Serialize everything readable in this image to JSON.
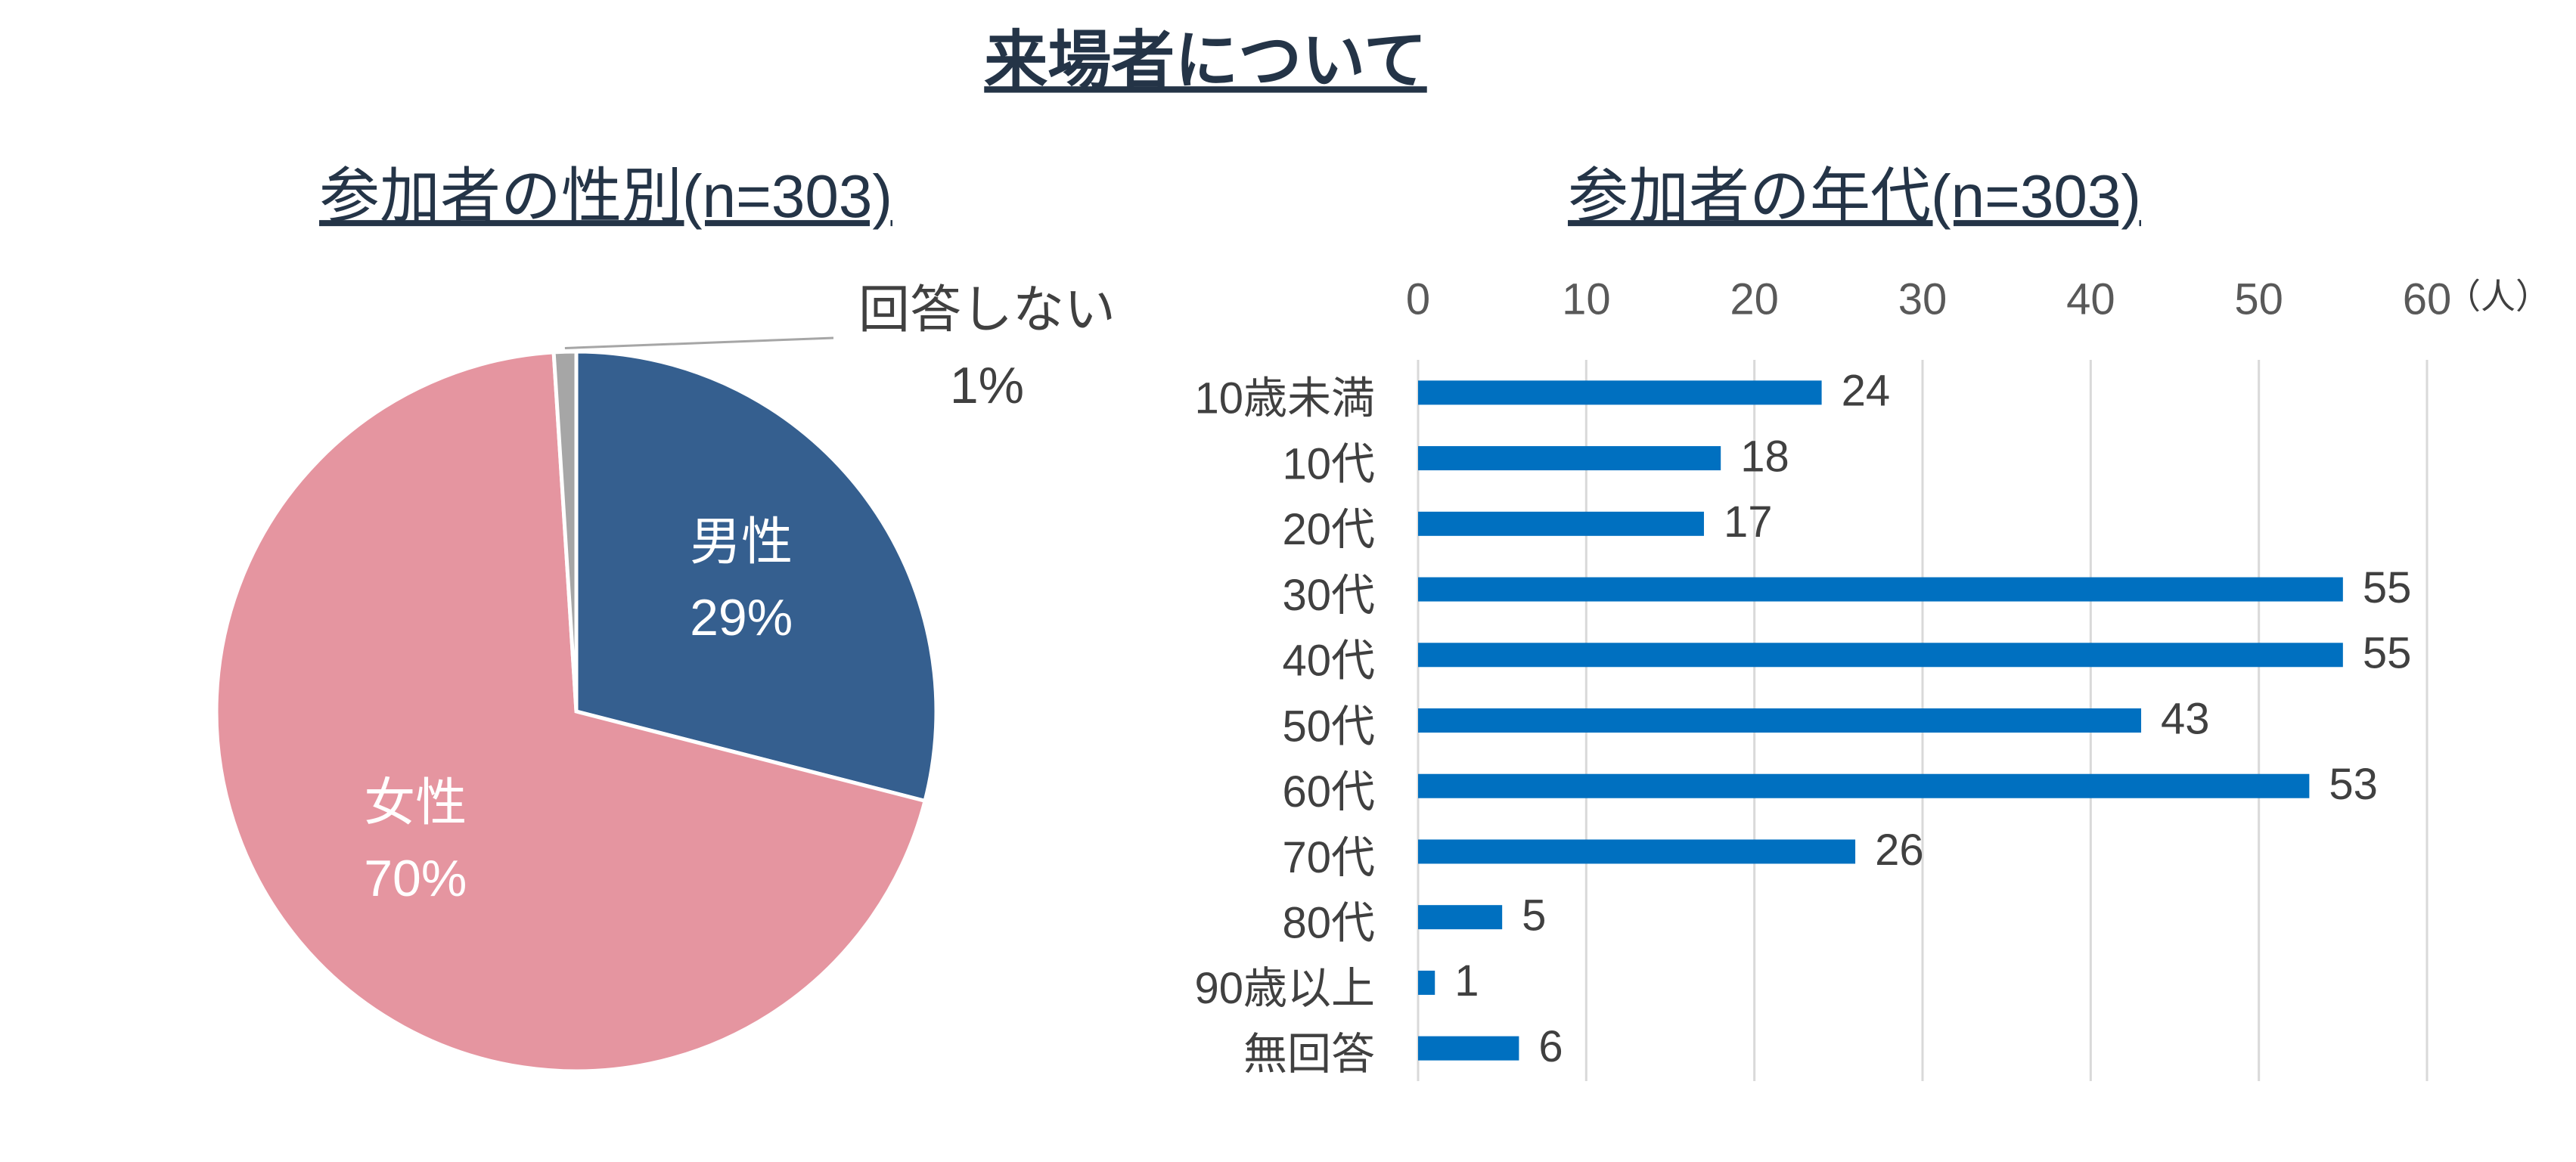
{
  "title": "来場者について",
  "chart_data": [
    {
      "type": "pie",
      "title": "参加者の性別(n=303)",
      "categories": [
        "男性",
        "女性",
        "回答しない"
      ],
      "values": [
        29,
        70,
        1
      ],
      "value_labels": [
        "29%",
        "70%",
        "1%"
      ],
      "colors": [
        "#355f8f",
        "#e595a0",
        "#a6a6a6"
      ]
    },
    {
      "type": "bar",
      "orientation": "horizontal",
      "title": "参加者の年代(n=303)",
      "categories": [
        "10歳未満",
        "10代",
        "20代",
        "30代",
        "40代",
        "50代",
        "60代",
        "70代",
        "80代",
        "90歳以上",
        "無回答"
      ],
      "values": [
        24,
        18,
        17,
        55,
        55,
        43,
        53,
        26,
        5,
        1,
        6
      ],
      "color": "#0070c0",
      "xlim": [
        0,
        60
      ],
      "xticks": [
        0,
        10,
        20,
        30,
        40,
        50,
        60
      ],
      "xlabel": "（人）",
      "grid": true
    }
  ]
}
